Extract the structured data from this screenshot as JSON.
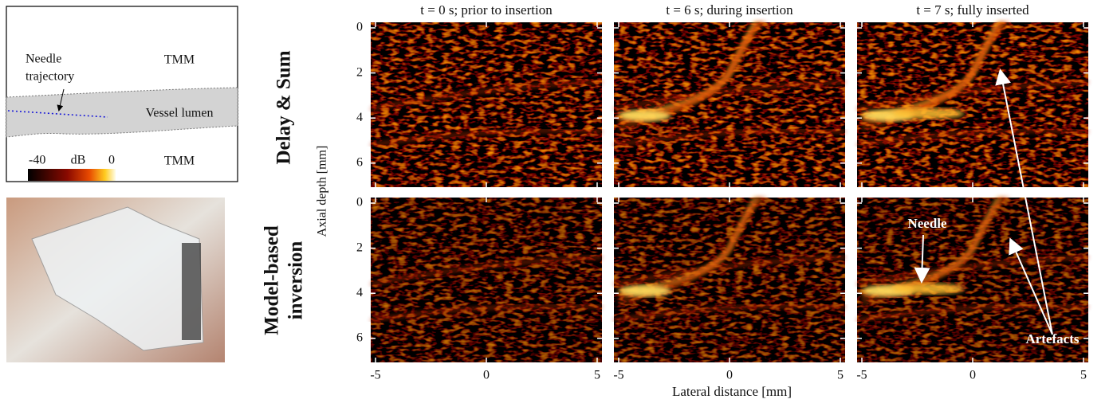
{
  "schematic": {
    "needle_label": [
      "Needle",
      "trajectory"
    ],
    "tmm_top": "TMM",
    "vessel": "Vessel lumen",
    "tmm_bottom": "TMM",
    "colorbar": {
      "min": "-40",
      "unit": "dB",
      "max": "0"
    }
  },
  "panels": {
    "columns": [
      "t = 0 s; prior to insertion",
      "t = 6 s; during insertion",
      "t = 7 s; fully inserted"
    ],
    "rows": [
      [
        "Delay & Sum"
      ],
      [
        "Model-based",
        "inversion"
      ]
    ],
    "y_axis_label": "Axial depth [mm]",
    "x_axis_label": "Lateral distance [mm]",
    "yticks": [
      0,
      2,
      4,
      6
    ],
    "xticks": [
      -5,
      0,
      5
    ]
  },
  "annotations": {
    "needle": "Needle",
    "artefacts": "Artefacts"
  }
}
